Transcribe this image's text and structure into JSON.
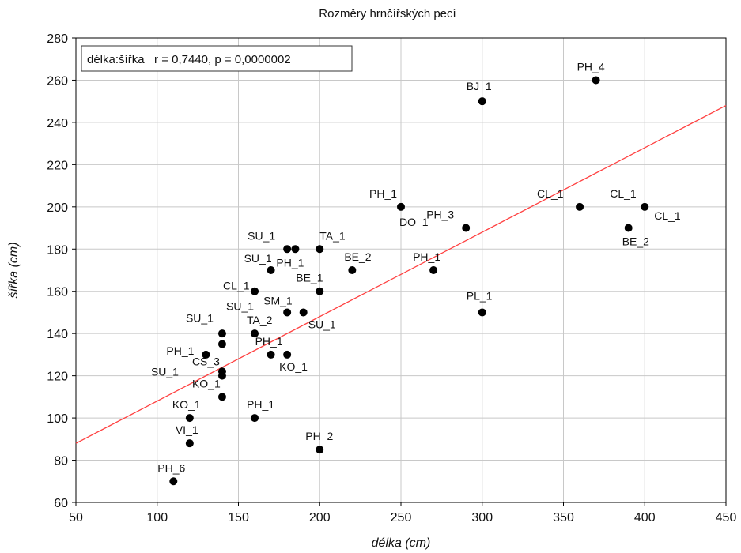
{
  "chart_data": {
    "type": "scatter",
    "title": "Rozměry hrnčířských pecí",
    "xlabel": "délka (cm)",
    "ylabel": "šířka (cm)",
    "xlim": [
      50,
      450
    ],
    "ylim": [
      60,
      280
    ],
    "xticks": [
      50,
      100,
      150,
      200,
      250,
      300,
      350,
      400,
      450
    ],
    "yticks": [
      60,
      80,
      100,
      120,
      140,
      160,
      180,
      200,
      220,
      240,
      260,
      280
    ],
    "grid": true,
    "legend_text": "délka:šířka   r = 0,7440, p = 0,0000002",
    "legend_position": "top-left",
    "marker_color": "#000000",
    "trendline_color": "#ff4040",
    "trendline": {
      "type": "linear",
      "x": [
        50,
        450
      ],
      "y": [
        88,
        248
      ]
    },
    "points": [
      {
        "x": 110,
        "y": 70,
        "label": "PH_6"
      },
      {
        "x": 120,
        "y": 88,
        "label": "VI_1"
      },
      {
        "x": 120,
        "y": 100,
        "label": "KO_1"
      },
      {
        "x": 130,
        "y": 130,
        "label": "PH_1"
      },
      {
        "x": 140,
        "y": 110,
        "label": "KO_1"
      },
      {
        "x": 140,
        "y": 120,
        "label": "SU_1"
      },
      {
        "x": 140,
        "y": 122,
        "label": "CS_3"
      },
      {
        "x": 140,
        "y": 135,
        "label": "SU_1"
      },
      {
        "x": 140,
        "y": 140,
        "label": ""
      },
      {
        "x": 160,
        "y": 100,
        "label": "PH_1"
      },
      {
        "x": 160,
        "y": 140,
        "label": "TA_2"
      },
      {
        "x": 160,
        "y": 160,
        "label": "CL_1"
      },
      {
        "x": 170,
        "y": 130,
        "label": "PH_1"
      },
      {
        "x": 170,
        "y": 170,
        "label": "SU_1"
      },
      {
        "x": 180,
        "y": 130,
        "label": "KO_1"
      },
      {
        "x": 180,
        "y": 150,
        "label": "SM_1"
      },
      {
        "x": 180,
        "y": 180,
        "label": "SU_1"
      },
      {
        "x": 185,
        "y": 180,
        "label": "PH_1"
      },
      {
        "x": 190,
        "y": 150,
        "label": "SU_1"
      },
      {
        "x": 200,
        "y": 85,
        "label": "PH_2"
      },
      {
        "x": 200,
        "y": 160,
        "label": "BE_1"
      },
      {
        "x": 200,
        "y": 180,
        "label": "TA_1"
      },
      {
        "x": 220,
        "y": 170,
        "label": "BE_2"
      },
      {
        "x": 250,
        "y": 200,
        "label": "PH_1"
      },
      {
        "x": 270,
        "y": 170,
        "label": "PH_1"
      },
      {
        "x": 290,
        "y": 190,
        "label": "PH_3"
      },
      {
        "x": 300,
        "y": 150,
        "label": "PL_1"
      },
      {
        "x": 300,
        "y": 250,
        "label": "BJ_1"
      },
      {
        "x": 360,
        "y": 200,
        "label": "CL_1"
      },
      {
        "x": 370,
        "y": 260,
        "label": "PH_4"
      },
      {
        "x": 390,
        "y": 190,
        "label": "BE_2"
      },
      {
        "x": 400,
        "y": 200,
        "label": "CL_1"
      }
    ],
    "extra_labels": [
      {
        "text": "DO_1",
        "x": 250,
        "y": 200
      },
      {
        "text": "CL_1",
        "x": 400,
        "y": 200
      },
      {
        "text": "SU_1",
        "x": 160,
        "y": 160
      }
    ]
  }
}
